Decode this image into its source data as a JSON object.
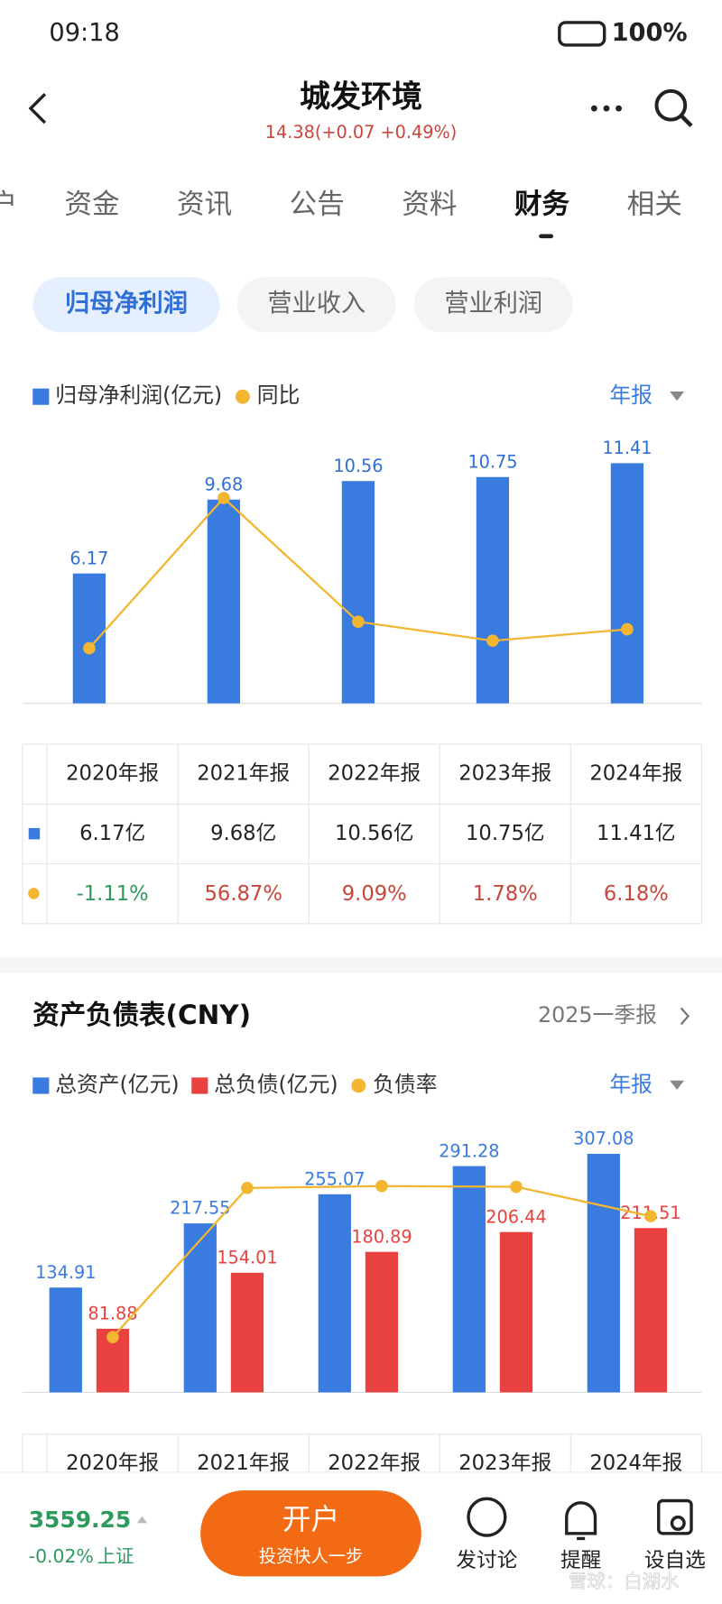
{
  "status_bar": {
    "time": "09:18",
    "battery": "100%"
  },
  "header": {
    "title": "城发环境",
    "quote": "14.38(+0.07 +0.49%)"
  },
  "tabs": [
    "户",
    "资金",
    "资讯",
    "公告",
    "资料",
    "财务",
    "相关"
  ],
  "subtabs": [
    "归母净利润",
    "营业收入",
    "营业利润"
  ],
  "chart_data": [
    {
      "type": "bar",
      "period": "年报",
      "categories": [
        "2020年报",
        "2021年报",
        "2022年报",
        "2023年报",
        "2024年报"
      ],
      "ylim": [
        0,
        13.5
      ],
      "y2lim": [
        -22.4,
        87.3
      ],
      "series": [
        {
          "name": "归母净利润(亿元)",
          "color": "#3a7be0",
          "values": [
            6.17,
            9.68,
            10.56,
            10.75,
            11.41
          ]
        },
        {
          "name": "同比",
          "type": "line",
          "axis": "y2",
          "color": "#f2b630",
          "values": [
            -1.11,
            56.87,
            9.09,
            1.78,
            6.18
          ]
        }
      ]
    },
    {
      "type": "bar",
      "title": "资产负债表(CNY)",
      "latest": "2025一季报",
      "period": "年报",
      "categories": [
        "2020年报",
        "2021年报",
        "2022年报",
        "2023年报",
        "2024年报"
      ],
      "ylim": [
        0,
        358
      ],
      "y2lim": [
        56.95,
        75.78
      ],
      "series": [
        {
          "name": "总资产(亿元)",
          "color": "#3a7be0",
          "values": [
            134.91,
            217.55,
            255.07,
            291.28,
            307.08
          ]
        },
        {
          "name": "总负债(亿元)",
          "color": "#e8413f",
          "values": [
            81.88,
            154.01,
            180.89,
            206.44,
            211.51
          ]
        },
        {
          "name": "负债率",
          "type": "line",
          "axis": "y2",
          "color": "#f2b630",
          "values": [
            60.69,
            70.79,
            70.92,
            70.87,
            68.88
          ]
        }
      ]
    }
  ],
  "table1": {
    "rows": [
      [
        "6.17亿",
        "9.68亿",
        "10.56亿",
        "10.75亿",
        "11.41亿"
      ],
      [
        "-1.11%",
        "56.87%",
        "9.09%",
        "1.78%",
        "6.18%"
      ]
    ]
  },
  "bottom_bar": {
    "index_value": "3559.25",
    "index_change": "-0.02%",
    "index_name": "上证",
    "button": "开户",
    "button_sub": "投资快人一步",
    "actions": [
      "发讨论",
      "提醒",
      "设自选"
    ],
    "watermark": "雪球：白湖水"
  }
}
